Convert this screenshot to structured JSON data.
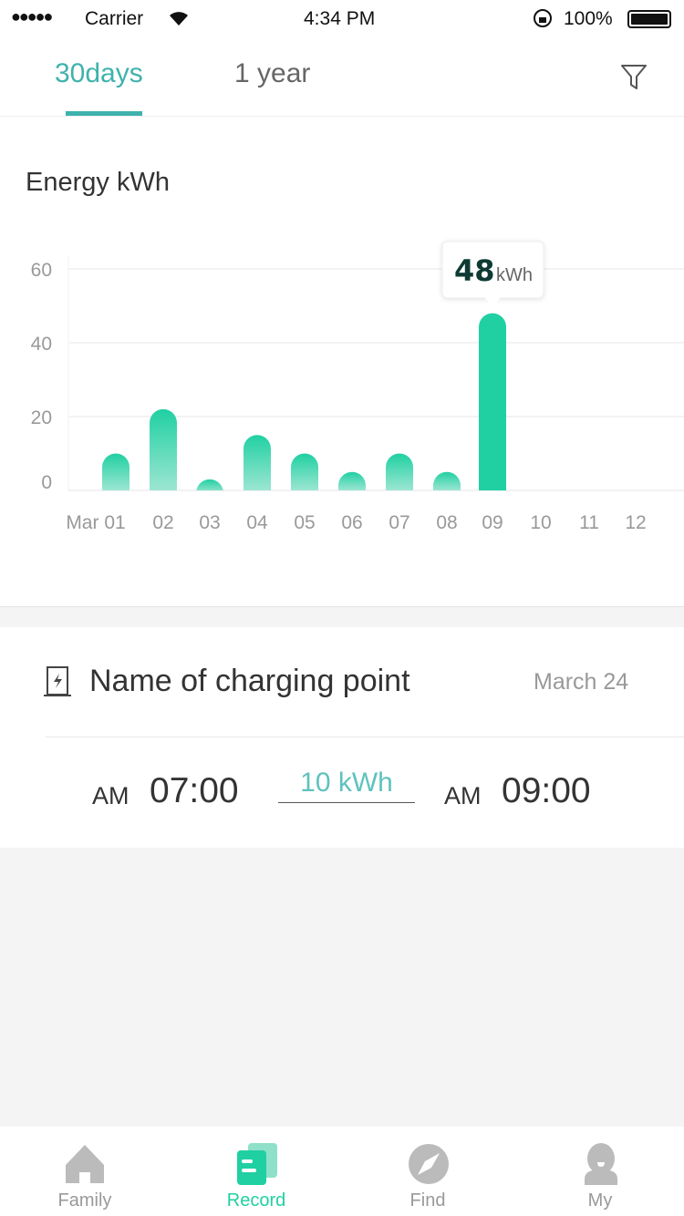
{
  "status_bar": {
    "signal": "●●●●●",
    "carrier": "Carrier",
    "time": "4:34 PM",
    "battery": "100%"
  },
  "tabs": [
    {
      "label": "30days",
      "active": true
    },
    {
      "label": "1 year",
      "active": false
    }
  ],
  "filter_icon": "filter-icon",
  "chart_title": "Energy  kWh",
  "colors": {
    "accent": "#20d0a2",
    "tab_active": "#3fb2ad",
    "tooltip_value": "#0e3a33"
  },
  "chart_data": {
    "type": "bar",
    "categories": [
      "Mar 01",
      "02",
      "03",
      "04",
      "05",
      "06",
      "07",
      "08",
      "09",
      "10",
      "11",
      "12"
    ],
    "values": [
      10,
      22,
      3,
      15,
      10,
      5,
      10,
      5,
      48,
      null,
      null,
      null
    ],
    "highlighted": "09",
    "tooltip": {
      "value": "48",
      "unit": "kWh"
    },
    "ylim": [
      0,
      60
    ],
    "yticks": [
      "0",
      "20",
      "40",
      "60"
    ],
    "grid": true
  },
  "session": {
    "name": "Name of charging point",
    "date": "March 24",
    "start_period": "AM",
    "start_time": "07:00",
    "energy": "10 kWh",
    "end_period": "AM",
    "end_time": "09:00"
  },
  "nav": [
    {
      "label": "Family",
      "icon": "home-icon"
    },
    {
      "label": "Record",
      "icon": "record-icon",
      "active": true
    },
    {
      "label": "Find",
      "icon": "compass-icon"
    },
    {
      "label": "My",
      "icon": "user-icon"
    }
  ]
}
